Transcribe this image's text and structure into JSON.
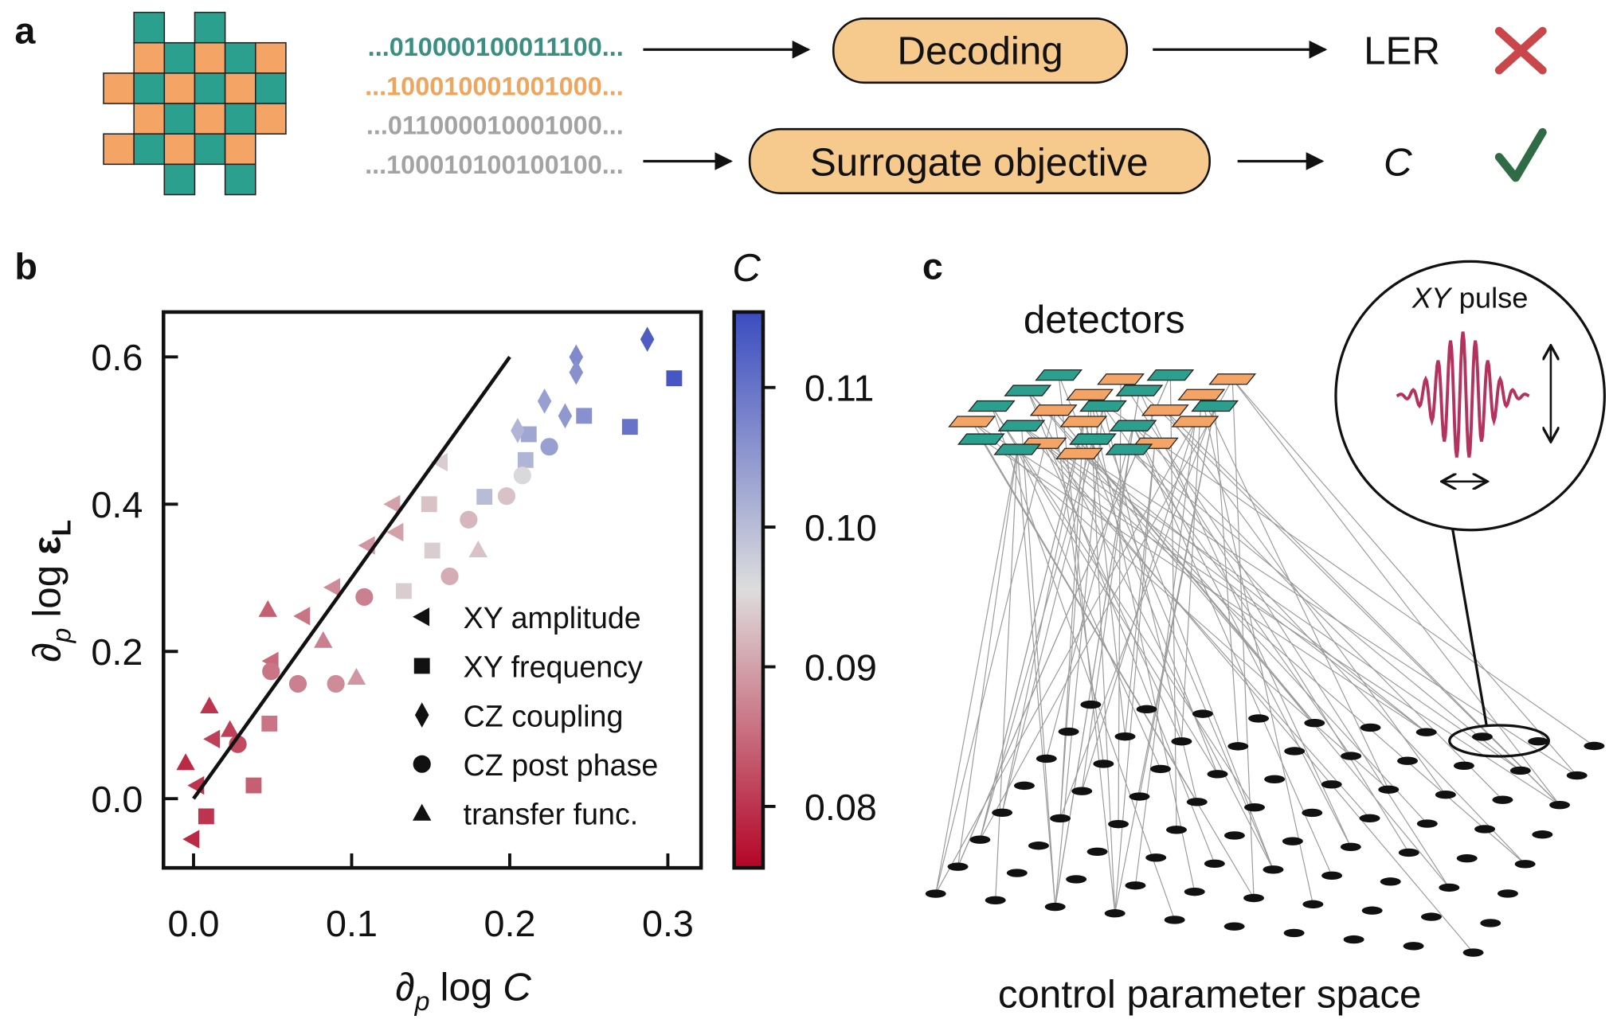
{
  "panel_a": {
    "label": "a",
    "bitstrings": [
      "...010000100011100...",
      "...100010001001000...",
      "...011000010001000...",
      "...100010100100100..."
    ],
    "bitstring_colors": [
      "#3b8f80",
      "#f0a55c",
      "#a3a3a3",
      "#a3a3a3"
    ],
    "decoding": "Decoding",
    "ler": "LER",
    "surrogate": "Surrogate objective",
    "objective_symbol": "C"
  },
  "chart_data": {
    "type": "scatter",
    "label": "b",
    "x_label": [
      "∂",
      "p",
      "log",
      "C"
    ],
    "y_label": [
      "∂",
      "p",
      "log",
      "ε",
      "L"
    ],
    "xlim": [
      -0.019,
      0.321
    ],
    "ylim": [
      -0.094,
      0.661
    ],
    "xticks": [
      {
        "value": 0,
        "label": "0.0"
      },
      0.1,
      0.2,
      0.3
    ],
    "yticks": [
      {
        "value": 0,
        "label": "0.0"
      },
      0.2,
      0.4,
      0.6
    ],
    "legend": "lower right",
    "fit_line": {
      "x": [
        0,
        0.2
      ],
      "values": [
        0,
        0.6
      ]
    },
    "colormap": {
      "label": "C",
      "clim": [
        0.0756,
        0.1154
      ],
      "colors": [
        "#b40426",
        "#dddddd",
        "#3b4cc0"
      ],
      "ticks": [
        0.08,
        0.09,
        {
          "value": 0.1,
          "label": "0.10"
        },
        0.11
      ]
    },
    "series": [
      {
        "name": "XY amplitude",
        "marker": "triangle-left",
        "x": [
          0.156,
          0.126,
          0.128,
          0.11,
          0.088,
          0.069,
          0.049,
          0.012,
          -0.001,
          0.002
        ],
        "values": [
          0.457,
          0.4,
          0.362,
          0.344,
          0.287,
          0.248,
          0.187,
          0.081,
          -0.055,
          0.018
        ],
        "c": [
          0.094,
          0.09,
          0.09,
          0.089,
          0.088,
          0.086,
          0.085,
          0.081,
          0.079,
          0.08
        ]
      },
      {
        "name": "XY frequency",
        "marker": "square",
        "x": [
          0.304,
          0.276,
          0.247,
          0.212,
          0.21,
          0.184,
          0.149,
          0.151,
          0.133,
          0.048,
          0.038,
          0.008
        ],
        "values": [
          0.571,
          0.505,
          0.52,
          0.495,
          0.46,
          0.41,
          0.4,
          0.337,
          0.282,
          0.102,
          0.018,
          -0.024
        ],
        "c": [
          0.114,
          0.11,
          0.106,
          0.103,
          0.101,
          0.1,
          0.093,
          0.094,
          0.094,
          0.086,
          0.084,
          0.08
        ]
      },
      {
        "name": "CZ coupling",
        "marker": "diamond",
        "x": [
          0.287,
          0.242,
          0.242,
          0.222,
          0.235,
          0.205
        ],
        "values": [
          0.624,
          0.6,
          0.579,
          0.54,
          0.52,
          0.5
        ],
        "c": [
          0.113,
          0.107,
          0.106,
          0.104,
          0.105,
          0.101
        ]
      },
      {
        "name": "CZ post phase",
        "marker": "circle",
        "x": [
          0.225,
          0.208,
          0.198,
          0.174,
          0.162,
          0.09,
          0.066,
          0.049,
          0.108,
          0.028
        ],
        "values": [
          0.478,
          0.439,
          0.411,
          0.379,
          0.302,
          0.156,
          0.156,
          0.173,
          0.274,
          0.074
        ],
        "c": [
          0.104,
          0.096,
          0.093,
          0.092,
          0.091,
          0.088,
          0.087,
          0.086,
          0.087,
          0.082
        ]
      },
      {
        "name": "transfer func.",
        "marker": "triangle",
        "x": [
          0.18,
          0.103,
          0.082,
          0.047,
          0.01,
          -0.005,
          0.023
        ],
        "values": [
          0.338,
          0.165,
          0.215,
          0.257,
          0.126,
          0.049,
          0.094
        ],
        "c": [
          0.093,
          0.089,
          0.087,
          0.084,
          0.08,
          0.079,
          0.081
        ]
      }
    ]
  },
  "panel_c": {
    "label": "c",
    "detectors": "detectors",
    "pulse_title": [
      "XY",
      "pulse"
    ],
    "parameter_space": "control parameter space"
  }
}
